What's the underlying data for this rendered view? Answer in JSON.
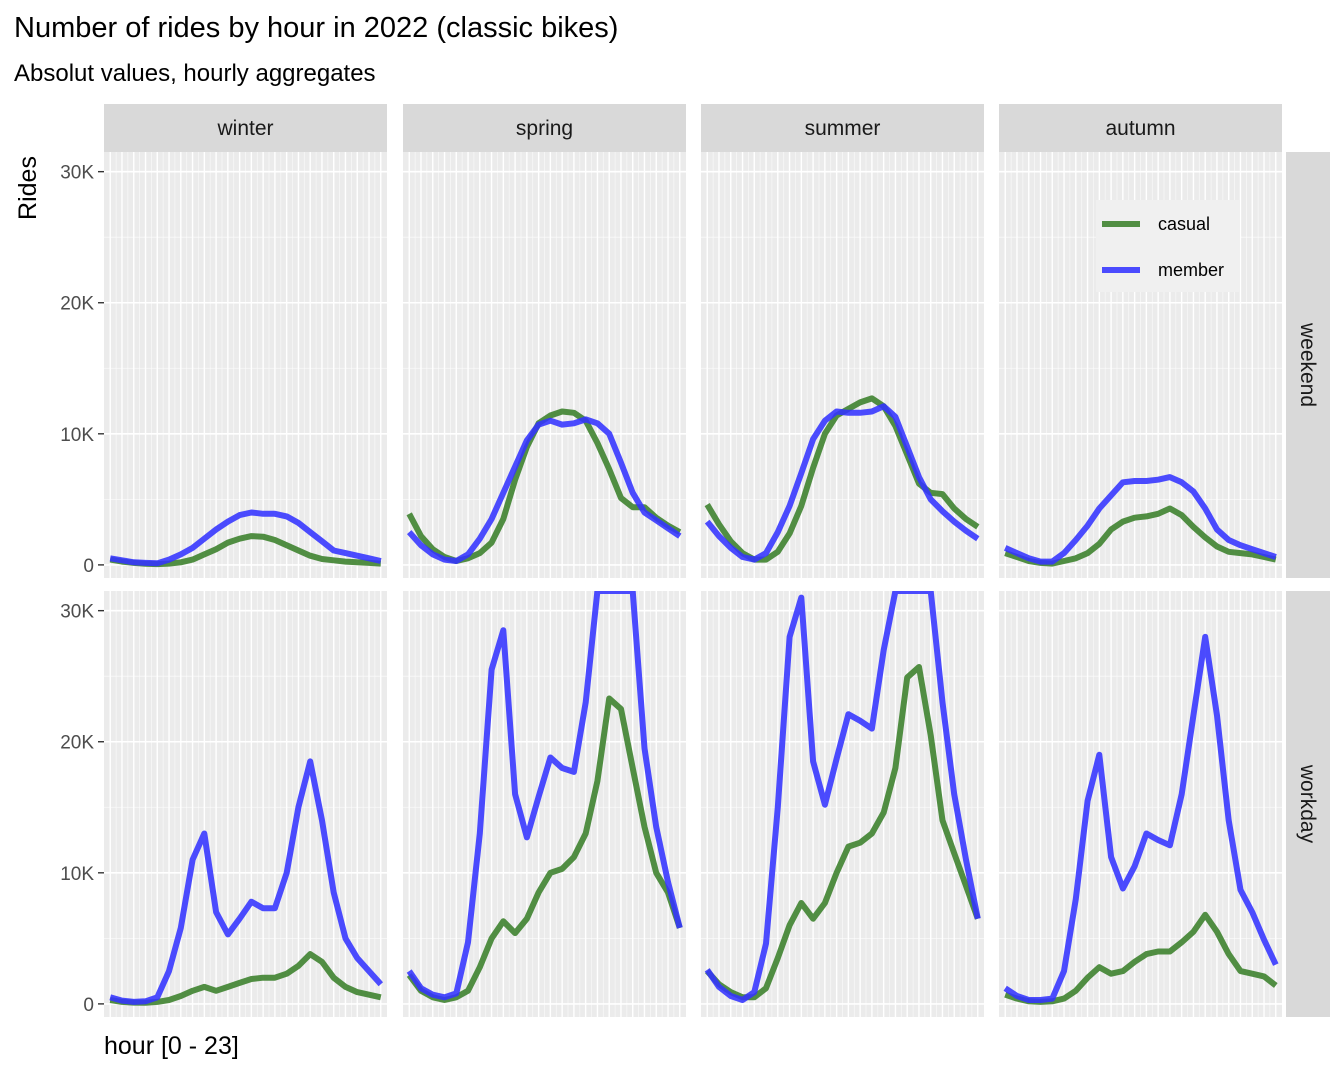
{
  "title": "Number of rides by hour in 2022 (classic bikes)",
  "subtitle": "Absolut values, hourly aggregates",
  "chart_data": {
    "type": "line",
    "title": "Number of rides by hour in 2022 (classic bikes)",
    "subtitle": "Absolut values, hourly aggregates",
    "xlabel": "hour [0 - 23]",
    "ylabel": "Rides",
    "x": [
      0,
      1,
      2,
      3,
      4,
      5,
      6,
      7,
      8,
      9,
      10,
      11,
      12,
      13,
      14,
      15,
      16,
      17,
      18,
      19,
      20,
      21,
      22,
      23
    ],
    "xlim": [
      0,
      23
    ],
    "ylim": [
      -1000,
      31500
    ],
    "y_ticks": [
      0,
      10000,
      20000,
      30000
    ],
    "y_tick_labels": [
      "0",
      "10K",
      "20K",
      "30K"
    ],
    "grid": true,
    "facet_columns": [
      "winter",
      "spring",
      "summer",
      "autumn"
    ],
    "facet_rows": [
      "weekend",
      "workday"
    ],
    "legend": {
      "position": "top-right",
      "entries": [
        "casual",
        "member"
      ]
    },
    "series_colors": {
      "casual": "#3a7f2a",
      "member": "#3333ff"
    },
    "panels": [
      {
        "season": "winter",
        "day_type": "weekend",
        "series": [
          {
            "name": "casual",
            "values": [
              400,
              250,
              150,
              80,
              60,
              100,
              200,
              400,
              800,
              1200,
              1700,
              2000,
              2200,
              2150,
              1900,
              1500,
              1100,
              700,
              450,
              350,
              250,
              200,
              150,
              100
            ]
          },
          {
            "name": "member",
            "values": [
              500,
              350,
              200,
              150,
              120,
              400,
              800,
              1300,
              2000,
              2700,
              3300,
              3800,
              4000,
              3900,
              3900,
              3700,
              3200,
              2500,
              1800,
              1100,
              900,
              700,
              500,
              300
            ]
          }
        ]
      },
      {
        "season": "spring",
        "day_type": "weekend",
        "series": [
          {
            "name": "casual",
            "values": [
              3900,
              2200,
              1200,
              600,
              300,
              500,
              900,
              1700,
              3500,
              6500,
              9000,
              10800,
              11400,
              11700,
              11600,
              11000,
              9300,
              7300,
              5100,
              4400,
              4400,
              3600,
              3000,
              2500
            ]
          },
          {
            "name": "member",
            "values": [
              2500,
              1500,
              800,
              400,
              300,
              800,
              2000,
              3500,
              5500,
              7500,
              9500,
              10700,
              11000,
              10700,
              10800,
              11100,
              10800,
              10000,
              7800,
              5500,
              4000,
              3400,
              2800,
              2200
            ]
          }
        ]
      },
      {
        "season": "summer",
        "day_type": "weekend",
        "series": [
          {
            "name": "casual",
            "values": [
              4600,
              3100,
              1800,
              900,
              400,
              400,
              1000,
              2400,
              4500,
              7400,
              10000,
              11400,
              11900,
              12400,
              12700,
              12100,
              10600,
              8400,
              6200,
              5500,
              5400,
              4300,
              3500,
              2900
            ]
          },
          {
            "name": "member",
            "values": [
              3300,
              2200,
              1300,
              600,
              400,
              900,
              2500,
              4500,
              7000,
              9600,
              11000,
              11700,
              11600,
              11600,
              11700,
              12100,
              11300,
              9000,
              6700,
              5000,
              4100,
              3300,
              2600,
              2000
            ]
          }
        ]
      },
      {
        "season": "autumn",
        "day_type": "weekend",
        "series": [
          {
            "name": "casual",
            "values": [
              900,
              600,
              300,
              150,
              100,
              300,
              500,
              900,
              1600,
              2700,
              3300,
              3600,
              3700,
              3900,
              4300,
              3800,
              2900,
              2100,
              1400,
              1000,
              900,
              800,
              600,
              400
            ]
          },
          {
            "name": "member",
            "values": [
              1300,
              900,
              500,
              250,
              250,
              900,
              1900,
              3000,
              4300,
              5300,
              6300,
              6400,
              6400,
              6500,
              6700,
              6300,
              5600,
              4300,
              2700,
              1900,
              1500,
              1200,
              900,
              600
            ]
          }
        ]
      },
      {
        "season": "winter",
        "day_type": "workday",
        "series": [
          {
            "name": "casual",
            "values": [
              300,
              150,
              100,
              80,
              150,
              300,
              600,
              1000,
              1300,
              1000,
              1300,
              1600,
              1900,
              2000,
              2000,
              2300,
              2900,
              3800,
              3200,
              2000,
              1300,
              900,
              700,
              500
            ]
          },
          {
            "name": "member",
            "values": [
              500,
              250,
              150,
              200,
              500,
              2500,
              5800,
              11000,
              13000,
              7000,
              5300,
              6500,
              7800,
              7300,
              7300,
              10000,
              15000,
              18500,
              14000,
              8500,
              5000,
              3500,
              2500,
              1500
            ]
          }
        ]
      },
      {
        "season": "spring",
        "day_type": "workday",
        "series": [
          {
            "name": "casual",
            "values": [
              2200,
              1000,
              500,
              300,
              500,
              1000,
              2800,
              5000,
              6300,
              5400,
              6500,
              8500,
              10000,
              10300,
              11200,
              13000,
              17000,
              23300,
              22500,
              18000,
              13500,
              10000,
              8500,
              5800
            ]
          },
          {
            "name": "member",
            "values": [
              2500,
              1200,
              700,
              500,
              800,
              4700,
              13000,
              25500,
              28500,
              16000,
              12700,
              15800,
              18800,
              18000,
              17700,
              23000,
              31500,
              31500,
              31500,
              31500,
              19500,
              13500,
              9300,
              5800
            ]
          }
        ]
      },
      {
        "season": "summer",
        "day_type": "workday",
        "series": [
          {
            "name": "casual",
            "values": [
              2500,
              1500,
              900,
              500,
              500,
              1200,
              3500,
              6000,
              7700,
              6500,
              7700,
              10000,
              12000,
              12300,
              13000,
              14600,
              18000,
              24900,
              25700,
              20500,
              14000,
              11500,
              9000,
              6500
            ]
          },
          {
            "name": "member",
            "values": [
              2600,
              1300,
              600,
              300,
              900,
              4600,
              15000,
              28000,
              31000,
              18500,
              15200,
              18700,
              22100,
              21600,
              21000,
              27000,
              31500,
              31500,
              31500,
              31500,
              23000,
              16000,
              11000,
              6500
            ]
          }
        ]
      },
      {
        "season": "autumn",
        "day_type": "workday",
        "series": [
          {
            "name": "casual",
            "values": [
              700,
              400,
              200,
              150,
              200,
              400,
              1000,
              2000,
              2800,
              2300,
              2500,
              3200,
              3800,
              4000,
              4000,
              4700,
              5500,
              6800,
              5500,
              3800,
              2500,
              2300,
              2100,
              1400
            ]
          },
          {
            "name": "member",
            "values": [
              1200,
              600,
              300,
              300,
              400,
              2500,
              8000,
              15500,
              19000,
              11200,
              8800,
              10500,
              13000,
              12500,
              12100,
              16000,
              22000,
              28000,
              22000,
              14000,
              8700,
              7000,
              4900,
              3000
            ]
          }
        ]
      }
    ]
  }
}
